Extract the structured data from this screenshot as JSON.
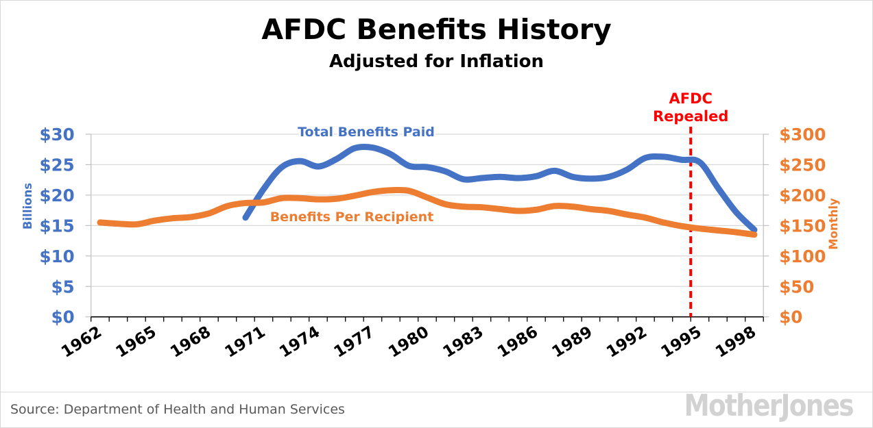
{
  "header": {
    "title": "AFDC Benefits History",
    "subtitle": "Adjusted for Inflation"
  },
  "footer": {
    "source": "Source: Department of Health and Human Services",
    "logo_text": "MotherJones"
  },
  "chart_data": {
    "type": "line",
    "title": "AFDC Benefits History",
    "subtitle": "Adjusted for Inflation",
    "grid": "horizontal",
    "legend_position": "inline-labels",
    "x_axis": {
      "start_year": 1962,
      "end_year": 1998,
      "tick_every_years": 1,
      "label_years": [
        1962,
        1965,
        1968,
        1971,
        1974,
        1977,
        1980,
        1983,
        1986,
        1989,
        1992,
        1995,
        1998
      ],
      "label_color": "#000000"
    },
    "y_axis_left": {
      "title": "Billions",
      "color": "#4472C4",
      "min": 0,
      "max": 30,
      "ticks": [
        {
          "value": 0,
          "label": "$0"
        },
        {
          "value": 5,
          "label": "$5"
        },
        {
          "value": 10,
          "label": "$10"
        },
        {
          "value": 15,
          "label": "$15"
        },
        {
          "value": 20,
          "label": "$20"
        },
        {
          "value": 25,
          "label": "$25"
        },
        {
          "value": 30,
          "label": "$30"
        }
      ]
    },
    "y_axis_right": {
      "title": "Monthly",
      "color": "#ED7D31",
      "min": 0,
      "max": 300,
      "ticks": [
        {
          "value": 0,
          "label": "$0"
        },
        {
          "value": 50,
          "label": "$50"
        },
        {
          "value": 100,
          "label": "$100"
        },
        {
          "value": 150,
          "label": "$150"
        },
        {
          "value": 200,
          "label": "$200"
        },
        {
          "value": 250,
          "label": "$250"
        },
        {
          "value": 300,
          "label": "$300"
        }
      ]
    },
    "series": [
      {
        "name": "Total Benefits Paid",
        "axis": "left",
        "color": "#4472C4",
        "units": "billions of dollars",
        "years": [
          1970,
          1971,
          1972,
          1973,
          1974,
          1975,
          1976,
          1977,
          1978,
          1979,
          1980,
          1981,
          1982,
          1983,
          1984,
          1985,
          1986,
          1987,
          1988,
          1989,
          1990,
          1991,
          1992,
          1993,
          1994,
          1995,
          1996,
          1997,
          1998
        ],
        "values": [
          16.3,
          21.0,
          24.6,
          25.6,
          24.7,
          25.9,
          27.7,
          27.8,
          26.7,
          24.8,
          24.6,
          23.9,
          22.6,
          22.8,
          23.0,
          22.8,
          23.1,
          24.0,
          23.0,
          22.7,
          23.0,
          24.2,
          26.1,
          26.3,
          25.8,
          25.4,
          21.2,
          17.2,
          14.3
        ]
      },
      {
        "name": "Benefits Per Recipient",
        "axis": "right",
        "color": "#ED7D31",
        "units": "dollars per month",
        "years": [
          1962,
          1963,
          1964,
          1965,
          1966,
          1967,
          1968,
          1969,
          1970,
          1971,
          1972,
          1973,
          1974,
          1975,
          1976,
          1977,
          1978,
          1979,
          1980,
          1981,
          1982,
          1983,
          1984,
          1985,
          1986,
          1987,
          1988,
          1989,
          1990,
          1991,
          1992,
          1993,
          1994,
          1995,
          1996,
          1997,
          1998
        ],
        "values": [
          155,
          153,
          152,
          158,
          162,
          164,
          170,
          182,
          187,
          188,
          195,
          195,
          193,
          194,
          199,
          205,
          208,
          207,
          196,
          185,
          181,
          180,
          177,
          174,
          176,
          182,
          181,
          177,
          174,
          168,
          163,
          155,
          149,
          145,
          142,
          139,
          135
        ]
      }
    ],
    "marker": {
      "label_lines": [
        "AFDC",
        "Repealed"
      ],
      "color": "#FF0000",
      "style": "dashed-vertical",
      "at_year": 1995,
      "position": "left boundary of 1995 category"
    },
    "inline_series_labels": [
      {
        "series": 0,
        "text": "Total Benefits Paid"
      },
      {
        "series": 1,
        "text": "Benefits Per Recipient"
      }
    ],
    "colors": {
      "gridline": "#D9D9D9",
      "value_axis_line": "#BFBFBF",
      "category_axis_line": "#000000"
    }
  }
}
